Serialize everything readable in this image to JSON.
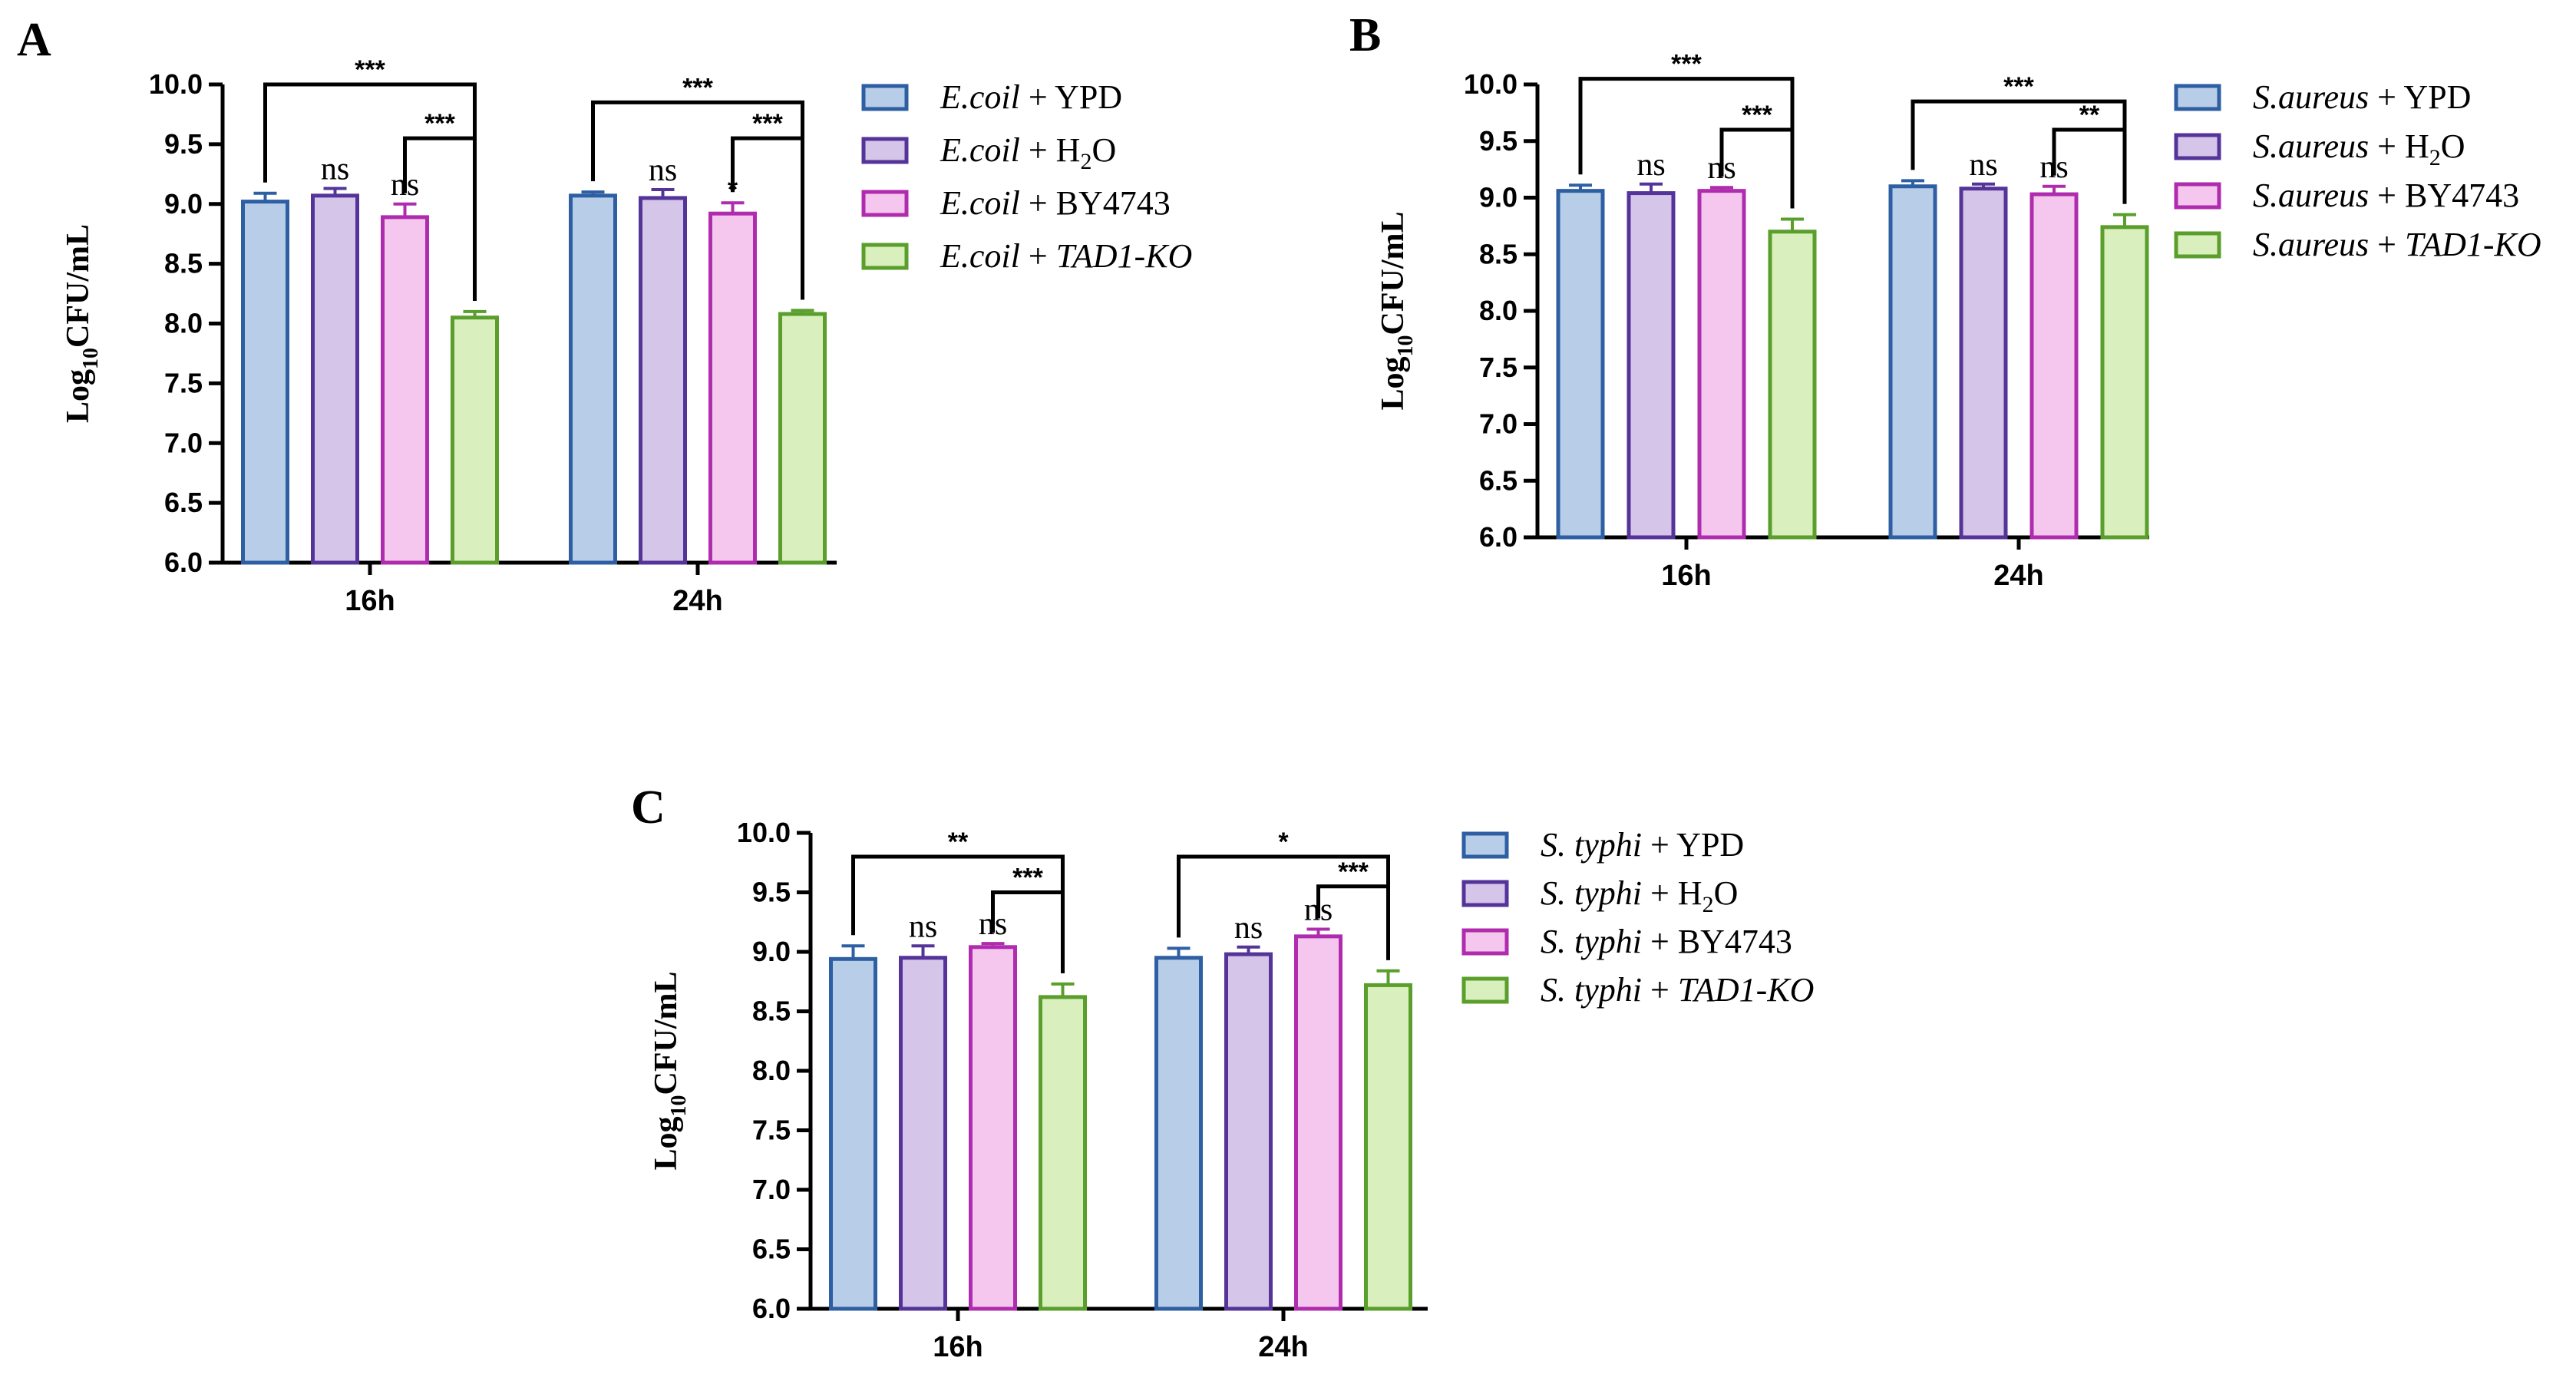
{
  "figure": {
    "panels": [
      {
        "letter": "A",
        "organism": "E.coil",
        "legend": [
          {
            "organism": "E.coil",
            "suffix": " + YPD",
            "sub": "",
            "after": "",
            "suffix_italic": false
          },
          {
            "organism": "E.coil",
            "suffix": " + H",
            "sub": "2",
            "after": "O",
            "suffix_italic": false
          },
          {
            "organism": "E.coil",
            "suffix": " + BY4743",
            "sub": "",
            "after": "",
            "suffix_italic": false
          },
          {
            "organism": "E.coil",
            "suffix": " + ",
            "italic_part": "TAD1-KO",
            "sub": "",
            "after": "",
            "suffix_italic": true
          }
        ]
      },
      {
        "letter": "B",
        "organism": "S.aureus",
        "legend": [
          {
            "organism": "S.aureus",
            "suffix": " + YPD",
            "sub": "",
            "after": "",
            "suffix_italic": false
          },
          {
            "organism": "S.aureus",
            "suffix": " + H",
            "sub": "2",
            "after": "O",
            "suffix_italic": false
          },
          {
            "organism": "S.aureus",
            "suffix": " + BY4743",
            "sub": "",
            "after": "",
            "suffix_italic": false
          },
          {
            "organism": "S.aureus",
            "suffix": " + ",
            "italic_part": "TAD1-KO",
            "sub": "",
            "after": "",
            "suffix_italic": true
          }
        ]
      },
      {
        "letter": "C",
        "organism": "S. typhi",
        "legend": [
          {
            "organism": "S. typhi",
            "suffix": " + YPD",
            "sub": "",
            "after": "",
            "suffix_italic": false
          },
          {
            "organism": "S. typhi",
            "suffix": " + H",
            "sub": "2",
            "after": "O",
            "suffix_italic": false
          },
          {
            "organism": "S. typhi",
            "suffix": " + BY4743",
            "sub": "",
            "after": "",
            "suffix_italic": false
          },
          {
            "organism": "S. typhi",
            "suffix": " + ",
            "italic_part": "TAD1-KO",
            "sub": "",
            "after": "",
            "suffix_italic": true
          }
        ]
      }
    ],
    "colors": {
      "fills": [
        "#b8cde8",
        "#d5c5e8",
        "#f5c7ef",
        "#d9efbd"
      ],
      "strokes": [
        "#2e5fa3",
        "#55349a",
        "#b02cae",
        "#5a9e2c"
      ],
      "axis": "#000000"
    }
  },
  "chart_data": [
    {
      "type": "bar",
      "panel": "A",
      "title": "",
      "xlabel": "",
      "ylabel": "Log10CFU/mL",
      "ylabel_main": "Log",
      "ylabel_sub": "10",
      "ylabel_rest": "CFU/mL",
      "ylim": [
        6.0,
        10.0
      ],
      "yticks": [
        "6.0",
        "6.5",
        "7.0",
        "7.5",
        "8.0",
        "8.5",
        "9.0",
        "9.5",
        "10.0"
      ],
      "categories": [
        "16h",
        "24h"
      ],
      "series": [
        {
          "name": "E.coil + YPD",
          "values": [
            9.02,
            9.07
          ],
          "errors": [
            0.07,
            0.03
          ]
        },
        {
          "name": "E.coil + H2O",
          "values": [
            9.07,
            9.05
          ],
          "errors": [
            0.06,
            0.07
          ]
        },
        {
          "name": "E.coil + BY4743",
          "values": [
            8.89,
            8.92
          ],
          "errors": [
            0.11,
            0.09
          ]
        },
        {
          "name": "E.coil + TAD1-KO",
          "values": [
            8.05,
            8.08
          ],
          "errors": [
            0.05,
            0.03
          ]
        }
      ],
      "annotations": [
        {
          "category": 0,
          "series": 1,
          "label": "ns"
        },
        {
          "category": 0,
          "series": 2,
          "label": "ns"
        },
        {
          "category": 1,
          "series": 1,
          "label": "ns"
        },
        {
          "category": 1,
          "series": 2,
          "label": "*"
        }
      ],
      "brackets": [
        {
          "category": 0,
          "from": 0,
          "to": 3,
          "label": "***",
          "level": 10.0
        },
        {
          "category": 0,
          "from": 2,
          "to": 3,
          "label": "***",
          "level": 9.55
        },
        {
          "category": 1,
          "from": 0,
          "to": 3,
          "label": "***",
          "level": 9.85
        },
        {
          "category": 1,
          "from": 2,
          "to": 3,
          "label": "***",
          "level": 9.55
        }
      ]
    },
    {
      "type": "bar",
      "panel": "B",
      "title": "",
      "xlabel": "",
      "ylabel": "Log10CFU/mL",
      "ylabel_main": "Log",
      "ylabel_sub": "10",
      "ylabel_rest": "CFU/mL",
      "ylim": [
        6.0,
        10.0
      ],
      "yticks": [
        "6.0",
        "6.5",
        "7.0",
        "7.5",
        "8.0",
        "8.5",
        "9.0",
        "9.5",
        "10.0"
      ],
      "categories": [
        "16h",
        "24h"
      ],
      "series": [
        {
          "name": "S.aureus + YPD",
          "values": [
            9.06,
            9.1
          ],
          "errors": [
            0.05,
            0.05
          ]
        },
        {
          "name": "S.aureus + H2O",
          "values": [
            9.04,
            9.08
          ],
          "errors": [
            0.08,
            0.04
          ]
        },
        {
          "name": "S.aureus + BY4743",
          "values": [
            9.06,
            9.03
          ],
          "errors": [
            0.03,
            0.07
          ]
        },
        {
          "name": "S.aureus + TAD1-KO",
          "values": [
            8.7,
            8.74
          ],
          "errors": [
            0.11,
            0.11
          ]
        }
      ],
      "annotations": [
        {
          "category": 0,
          "series": 1,
          "label": "ns"
        },
        {
          "category": 0,
          "series": 2,
          "label": "ns"
        },
        {
          "category": 1,
          "series": 1,
          "label": "ns"
        },
        {
          "category": 1,
          "series": 2,
          "label": "ns"
        }
      ],
      "brackets": [
        {
          "category": 0,
          "from": 0,
          "to": 3,
          "label": "***",
          "level": 10.05
        },
        {
          "category": 0,
          "from": 2,
          "to": 3,
          "label": "***",
          "level": 9.6
        },
        {
          "category": 1,
          "from": 0,
          "to": 3,
          "label": "***",
          "level": 9.85
        },
        {
          "category": 1,
          "from": 2,
          "to": 3,
          "label": "**",
          "level": 9.6
        }
      ]
    },
    {
      "type": "bar",
      "panel": "C",
      "title": "",
      "xlabel": "",
      "ylabel": "Log10CFU/mL",
      "ylabel_main": "Log",
      "ylabel_sub": "10",
      "ylabel_rest": "CFU/mL",
      "ylim": [
        6.0,
        10.0
      ],
      "yticks": [
        "6.0",
        "6.5",
        "7.0",
        "7.5",
        "8.0",
        "8.5",
        "9.0",
        "9.5",
        "10.0"
      ],
      "categories": [
        "16h",
        "24h"
      ],
      "series": [
        {
          "name": "S. typhi + YPD",
          "values": [
            8.94,
            8.95
          ],
          "errors": [
            0.11,
            0.08
          ]
        },
        {
          "name": "S. typhi + H2O",
          "values": [
            8.95,
            8.98
          ],
          "errors": [
            0.1,
            0.06
          ]
        },
        {
          "name": "S. typhi + BY4743",
          "values": [
            9.04,
            9.13
          ],
          "errors": [
            0.03,
            0.06
          ]
        },
        {
          "name": "S. typhi + TAD1-KO",
          "values": [
            8.62,
            8.72
          ],
          "errors": [
            0.11,
            0.12
          ]
        }
      ],
      "annotations": [
        {
          "category": 0,
          "series": 1,
          "label": "ns"
        },
        {
          "category": 0,
          "series": 2,
          "label": "ns"
        },
        {
          "category": 1,
          "series": 1,
          "label": "ns"
        },
        {
          "category": 1,
          "series": 2,
          "label": "ns"
        }
      ],
      "brackets": [
        {
          "category": 0,
          "from": 0,
          "to": 3,
          "label": "**",
          "level": 9.8
        },
        {
          "category": 0,
          "from": 2,
          "to": 3,
          "label": "***",
          "level": 9.5
        },
        {
          "category": 1,
          "from": 0,
          "to": 3,
          "label": "*",
          "level": 9.8
        },
        {
          "category": 1,
          "from": 2,
          "to": 3,
          "label": "***",
          "level": 9.55
        }
      ]
    }
  ]
}
